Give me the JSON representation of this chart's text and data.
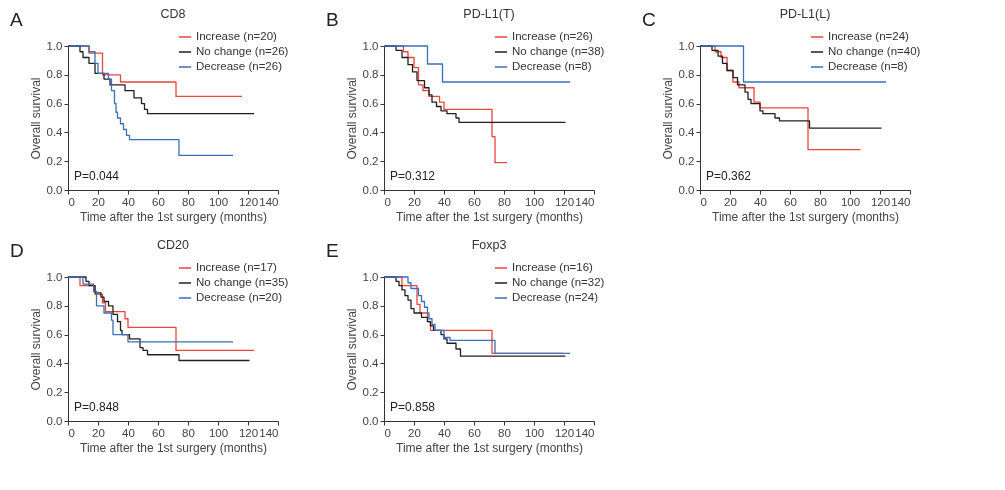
{
  "chart_data": [
    {
      "type": "step",
      "title": "CD8",
      "xlabel": "Time after the 1st surgery (months)",
      "ylabel": "Overall survival",
      "annotations": [
        "A",
        "P=0.044"
      ],
      "xlim": [
        0,
        140
      ],
      "xticks": [
        0,
        20,
        40,
        60,
        80,
        100,
        120,
        140
      ],
      "ylim": [
        0,
        1
      ],
      "yticks": [
        {
          "value": 0,
          "label": "0.0"
        },
        {
          "value": 0.2,
          "label": "0.2"
        },
        {
          "value": 0.4,
          "label": "0.4"
        },
        {
          "value": 0.6,
          "label": "0.6"
        },
        {
          "value": 0.8,
          "label": "0.8"
        },
        {
          "value": 1,
          "label": "1.0"
        }
      ],
      "legend": "top right",
      "series": [
        {
          "name": "Increase (n=20)",
          "color": "#e8473a",
          "x": [
            0,
            14,
            23,
            35,
            72,
            116
          ],
          "values": [
            1,
            0.95,
            0.8,
            0.75,
            0.65,
            0.65
          ]
        },
        {
          "name": "No change (n=26)",
          "color": "#231f20",
          "x": [
            0,
            8,
            10,
            14,
            18,
            24,
            28,
            38,
            44,
            49,
            51,
            53,
            124
          ],
          "values": [
            1,
            0.96,
            0.92,
            0.88,
            0.81,
            0.77,
            0.73,
            0.69,
            0.64,
            0.6,
            0.56,
            0.53,
            0.53
          ]
        },
        {
          "name": "Decrease (n=26)",
          "color": "#3b6fb6",
          "x": [
            0,
            14,
            18,
            20,
            27,
            29,
            31,
            32,
            33,
            35,
            37,
            39,
            41,
            74,
            110
          ],
          "values": [
            1,
            0.96,
            0.88,
            0.81,
            0.77,
            0.69,
            0.6,
            0.54,
            0.5,
            0.46,
            0.42,
            0.38,
            0.35,
            0.24,
            0.24
          ]
        }
      ]
    },
    {
      "type": "step",
      "title": "PD-L1(T)",
      "xlabel": "Time after the 1st surgery (months)",
      "ylabel": "Overall survival",
      "annotations": [
        "B",
        "P=0.312"
      ],
      "xlim": [
        0,
        140
      ],
      "xticks": [
        0,
        20,
        40,
        60,
        80,
        100,
        120,
        140
      ],
      "ylim": [
        0,
        1
      ],
      "yticks": [
        {
          "value": 0,
          "label": "0.0"
        },
        {
          "value": 0.2,
          "label": "0.2"
        },
        {
          "value": 0.4,
          "label": "0.4"
        },
        {
          "value": 0.6,
          "label": "0.6"
        },
        {
          "value": 0.8,
          "label": "0.8"
        },
        {
          "value": 1,
          "label": "1.0"
        }
      ],
      "legend": "top right",
      "series": [
        {
          "name": "Increase (n=26)",
          "color": "#e8473a",
          "x": [
            0,
            13,
            16,
            20,
            23,
            26,
            30,
            37,
            40,
            72,
            74,
            82
          ],
          "values": [
            1,
            0.96,
            0.92,
            0.85,
            0.73,
            0.69,
            0.65,
            0.61,
            0.56,
            0.37,
            0.19,
            0.19
          ]
        },
        {
          "name": "No change (n=38)",
          "color": "#231f20",
          "x": [
            0,
            8,
            12,
            16,
            19,
            22,
            27,
            30,
            32,
            35,
            38,
            42,
            48,
            50,
            121
          ],
          "values": [
            1,
            0.97,
            0.92,
            0.87,
            0.82,
            0.76,
            0.71,
            0.66,
            0.61,
            0.58,
            0.55,
            0.53,
            0.5,
            0.47,
            0.47
          ]
        },
        {
          "name": "Decrease (n=8)",
          "color": "#3b6fb6",
          "x": [
            0,
            29,
            39,
            124
          ],
          "values": [
            1,
            0.875,
            0.75,
            0.75
          ]
        }
      ]
    },
    {
      "type": "step",
      "title": "PD-L1(L)",
      "xlabel": "Time after the 1st surgery (months)",
      "ylabel": "Overall survival",
      "annotations": [
        "C",
        "P=0.362"
      ],
      "xlim": [
        0,
        140
      ],
      "xticks": [
        0,
        20,
        40,
        60,
        80,
        100,
        120,
        140
      ],
      "ylim": [
        0,
        1
      ],
      "yticks": [
        {
          "value": 0,
          "label": "0.0"
        },
        {
          "value": 0.2,
          "label": "0.2"
        },
        {
          "value": 0.4,
          "label": "0.4"
        },
        {
          "value": 0.6,
          "label": "0.6"
        },
        {
          "value": 0.8,
          "label": "0.8"
        },
        {
          "value": 1,
          "label": "1.0"
        }
      ],
      "legend": "top right",
      "series": [
        {
          "name": "Increase (n=24)",
          "color": "#e8473a",
          "x": [
            0,
            10,
            14,
            18,
            22,
            26,
            36,
            40,
            72,
            107
          ],
          "values": [
            1,
            0.96,
            0.92,
            0.83,
            0.75,
            0.71,
            0.61,
            0.57,
            0.28,
            0.28
          ]
        },
        {
          "name": "No change (n=40)",
          "color": "#231f20",
          "x": [
            0,
            8,
            12,
            15,
            18,
            22,
            25,
            30,
            32,
            34,
            40,
            42,
            50,
            53,
            73,
            121
          ],
          "values": [
            1,
            0.97,
            0.93,
            0.88,
            0.83,
            0.78,
            0.73,
            0.68,
            0.63,
            0.6,
            0.55,
            0.53,
            0.5,
            0.48,
            0.43,
            0.43
          ]
        },
        {
          "name": "Decrease (n=8)",
          "color": "#3b6fb6",
          "x": [
            0,
            29,
            124
          ],
          "values": [
            1,
            0.75,
            0.75
          ]
        }
      ]
    },
    {
      "type": "step",
      "title": "CD20",
      "xlabel": "Time after the 1st surgery (months)",
      "ylabel": "Overall survival",
      "annotations": [
        "D",
        "P=0.848"
      ],
      "xlim": [
        0,
        140
      ],
      "xticks": [
        0,
        20,
        40,
        60,
        80,
        100,
        120,
        140
      ],
      "ylim": [
        0,
        1
      ],
      "yticks": [
        {
          "value": 0,
          "label": "0.0"
        },
        {
          "value": 0.2,
          "label": "0.2"
        },
        {
          "value": 0.4,
          "label": "0.4"
        },
        {
          "value": 0.6,
          "label": "0.6"
        },
        {
          "value": 0.8,
          "label": "0.8"
        },
        {
          "value": 1,
          "label": "1.0"
        }
      ],
      "legend": "top right",
      "series": [
        {
          "name": "Increase (n=17)",
          "color": "#e8473a",
          "x": [
            0,
            8,
            18,
            23,
            25,
            38,
            40,
            72,
            124
          ],
          "values": [
            1,
            0.94,
            0.88,
            0.82,
            0.76,
            0.71,
            0.65,
            0.49,
            0.49
          ]
        },
        {
          "name": "No change (n=35)",
          "color": "#231f20",
          "x": [
            0,
            12,
            14,
            18,
            22,
            24,
            27,
            30,
            33,
            35,
            36,
            41,
            48,
            50,
            53,
            74,
            121
          ],
          "values": [
            1,
            0.97,
            0.94,
            0.89,
            0.86,
            0.83,
            0.8,
            0.74,
            0.69,
            0.63,
            0.6,
            0.57,
            0.51,
            0.49,
            0.46,
            0.42,
            0.42
          ]
        },
        {
          "name": "Decrease (n=20)",
          "color": "#3b6fb6",
          "x": [
            0,
            10,
            17,
            19,
            24,
            29,
            30,
            40,
            110
          ],
          "values": [
            1,
            0.95,
            0.9,
            0.8,
            0.75,
            0.7,
            0.6,
            0.55,
            0.55
          ]
        }
      ]
    },
    {
      "type": "step",
      "title": "Foxp3",
      "xlabel": "Time after the 1st surgery (months)",
      "ylabel": "Overall survival",
      "annotations": [
        "E",
        "P=0.858"
      ],
      "xlim": [
        0,
        140
      ],
      "xticks": [
        0,
        20,
        40,
        60,
        80,
        100,
        120,
        140
      ],
      "ylim": [
        0,
        1
      ],
      "yticks": [
        {
          "value": 0,
          "label": "0.0"
        },
        {
          "value": 0.2,
          "label": "0.2"
        },
        {
          "value": 0.4,
          "label": "0.4"
        },
        {
          "value": 0.6,
          "label": "0.6"
        },
        {
          "value": 0.8,
          "label": "0.8"
        },
        {
          "value": 1,
          "label": "1.0"
        }
      ],
      "legend": "top right",
      "series": [
        {
          "name": "Increase (n=16)",
          "color": "#e8473a",
          "x": [
            0,
            12,
            22,
            24,
            29,
            31,
            72,
            120
          ],
          "values": [
            1,
            0.94,
            0.81,
            0.75,
            0.69,
            0.63,
            0.47,
            0.47
          ]
        },
        {
          "name": "No change (n=32)",
          "color": "#231f20",
          "x": [
            0,
            8,
            10,
            12,
            14,
            16,
            18,
            20,
            25,
            29,
            31,
            33,
            38,
            40,
            42,
            48,
            51,
            121
          ],
          "values": [
            1,
            0.97,
            0.94,
            0.91,
            0.87,
            0.84,
            0.78,
            0.75,
            0.72,
            0.69,
            0.66,
            0.63,
            0.6,
            0.57,
            0.54,
            0.5,
            0.45,
            0.45
          ]
        },
        {
          "name": "Decrease (n=24)",
          "color": "#3b6fb6",
          "x": [
            0,
            16,
            18,
            23,
            25,
            27,
            29,
            30,
            32,
            34,
            40,
            44,
            74,
            124
          ],
          "values": [
            1,
            0.96,
            0.92,
            0.87,
            0.83,
            0.79,
            0.75,
            0.71,
            0.67,
            0.63,
            0.58,
            0.56,
            0.47,
            0.47
          ]
        }
      ]
    }
  ]
}
